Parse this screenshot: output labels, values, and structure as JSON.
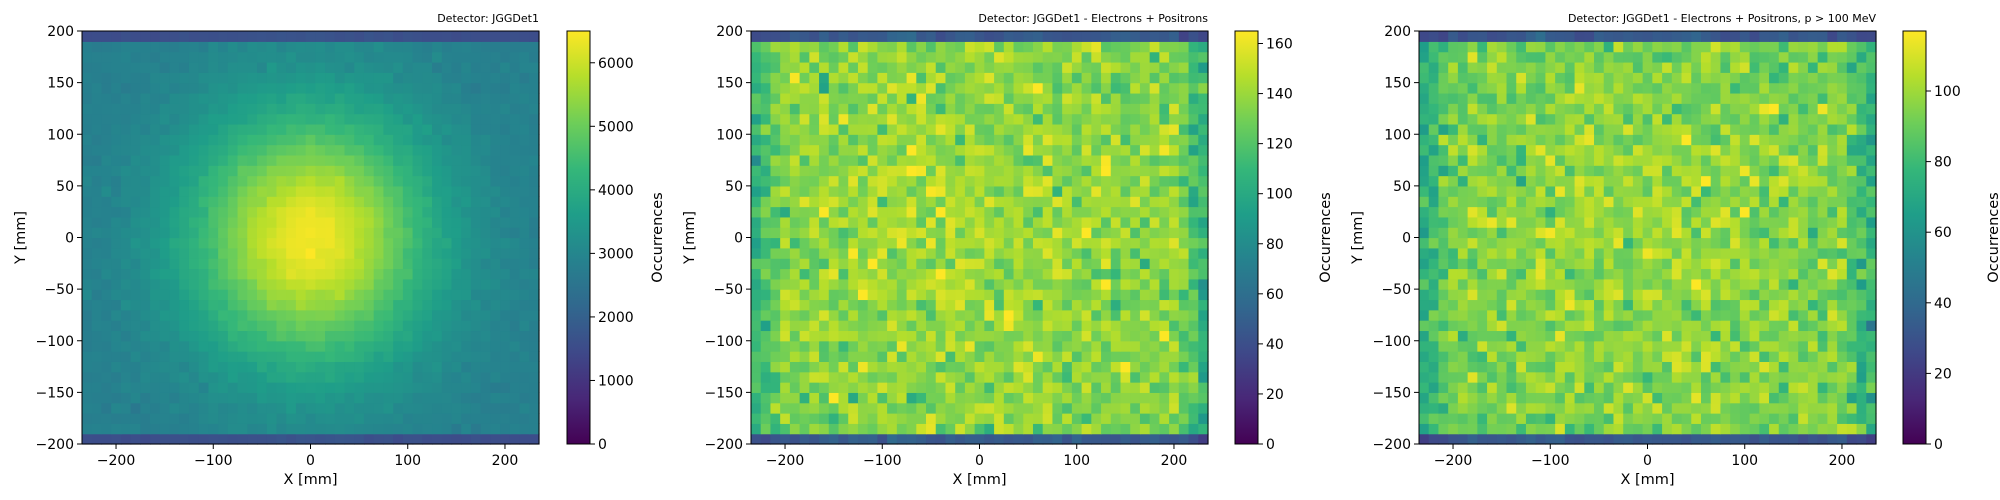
{
  "figure": {
    "colormap": "viridis",
    "colormap_stops": [
      "#440154",
      "#482878",
      "#3e4989",
      "#31688e",
      "#26828e",
      "#1f9e89",
      "#35b779",
      "#6ece58",
      "#b5de2b",
      "#fde725"
    ]
  },
  "chart_data": [
    {
      "type": "heatmap",
      "title": "Detector: JGGDet1",
      "xlabel": "X [mm]",
      "ylabel": "Y [mm]",
      "colorbar_label": "Occurrences",
      "xlim": [
        -235,
        235
      ],
      "ylim": [
        -200,
        200
      ],
      "xticks": [
        -200,
        -100,
        0,
        100,
        200
      ],
      "yticks": [
        -200,
        -150,
        -100,
        -50,
        0,
        50,
        100,
        150,
        200
      ],
      "xtick_labels": [
        "−200",
        "−100",
        "0",
        "100",
        "200"
      ],
      "ytick_labels": [
        "−200",
        "−150",
        "−100",
        "−50",
        "0",
        "50",
        "100",
        "150",
        "200"
      ],
      "bins": {
        "nx": 47,
        "ny": 40
      },
      "distribution": "gaussian-like peak centred near (0, 0), sigma about 80 mm, falling to about 2800 at the edges; thin edge bins near 200",
      "peak_value": 6400,
      "edge_value": 2800,
      "clim": [
        0,
        6500
      ],
      "colorbar_ticks": [
        0,
        1000,
        2000,
        3000,
        4000,
        5000,
        6000
      ],
      "colorbar_tick_labels": [
        "0",
        "1000",
        "2000",
        "3000",
        "4000",
        "5000",
        "6000"
      ]
    },
    {
      "type": "heatmap",
      "title": "Detector: JGGDet1 - Electrons + Positrons",
      "xlabel": "X [mm]",
      "ylabel": "Y [mm]",
      "colorbar_label": "Occurrences",
      "xlim": [
        -235,
        235
      ],
      "ylim": [
        -200,
        200
      ],
      "xticks": [
        -200,
        -100,
        0,
        100,
        200
      ],
      "yticks": [
        -200,
        -150,
        -100,
        -50,
        0,
        50,
        100,
        150,
        200
      ],
      "xtick_labels": [
        "−200",
        "−100",
        "0",
        "100",
        "200"
      ],
      "ytick_labels": [
        "−200",
        "−150",
        "−100",
        "−50",
        "0",
        "50",
        "100",
        "150",
        "200"
      ],
      "bins": {
        "nx": 47,
        "ny": 40
      },
      "distribution": "noisy, broad plateau of about 110-130 counts, lower (about 80) near the left/right edges",
      "peak_value": 162,
      "edge_value": 80,
      "clim": [
        0,
        165
      ],
      "colorbar_ticks": [
        0,
        20,
        40,
        60,
        80,
        100,
        120,
        140,
        160
      ],
      "colorbar_tick_labels": [
        "0",
        "20",
        "40",
        "60",
        "80",
        "100",
        "120",
        "140",
        "160"
      ]
    },
    {
      "type": "heatmap",
      "title": "Detector: JGGDet1 - Electrons + Positrons, p > 100 MeV",
      "xlabel": "X [mm]",
      "ylabel": "Y [mm]",
      "colorbar_label": "Occurrences",
      "xlim": [
        -235,
        235
      ],
      "ylim": [
        -200,
        200
      ],
      "xticks": [
        -200,
        -100,
        0,
        100,
        200
      ],
      "yticks": [
        -200,
        -150,
        -100,
        -50,
        0,
        50,
        100,
        150,
        200
      ],
      "xtick_labels": [
        "−200",
        "−100",
        "0",
        "100",
        "200"
      ],
      "ytick_labels": [
        "−200",
        "−150",
        "−100",
        "−50",
        "0",
        "50",
        "100",
        "150",
        "200"
      ],
      "bins": {
        "nx": 47,
        "ny": 40
      },
      "distribution": "noisy, broad plateau of about 75-95 counts, lower (about 50) near the left/right edges",
      "peak_value": 115,
      "edge_value": 50,
      "clim": [
        0,
        117
      ],
      "colorbar_ticks": [
        0,
        20,
        40,
        60,
        80,
        100
      ],
      "colorbar_tick_labels": [
        "0",
        "20",
        "40",
        "60",
        "80",
        "100"
      ]
    }
  ]
}
